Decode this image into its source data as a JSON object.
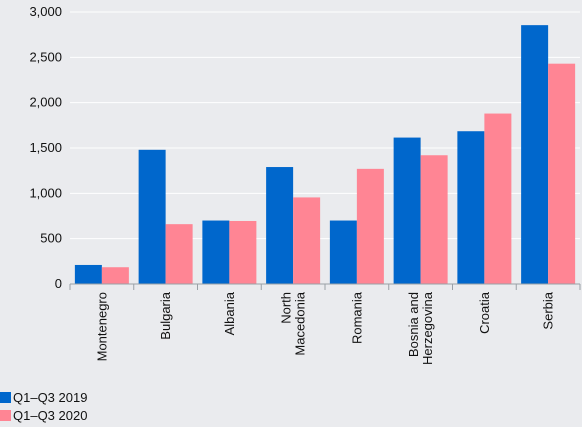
{
  "chart_data": {
    "type": "bar",
    "categories": [
      [
        "Montenegro"
      ],
      [
        "Bulgaria"
      ],
      [
        "Albania"
      ],
      [
        "North",
        "Macedonia"
      ],
      [
        "Romania"
      ],
      [
        "Bosnia and",
        "Herzegovina"
      ],
      [
        "Croatia"
      ],
      [
        "Serbia"
      ]
    ],
    "series": [
      {
        "name": "Q1–Q3 2019",
        "color": "#0067cc",
        "values": [
          210,
          1480,
          700,
          1290,
          700,
          1615,
          1685,
          2855
        ]
      },
      {
        "name": "Q1–Q3 2020",
        "color": "#ff8594",
        "values": [
          185,
          660,
          695,
          955,
          1270,
          1420,
          1880,
          2430
        ]
      }
    ],
    "yticks": [
      "0",
      "500",
      "1,000",
      "1,500",
      "2,000",
      "2,500",
      "3,000"
    ],
    "ylim": [
      0,
      3000
    ],
    "grid": true,
    "legend_position": "bottom-left"
  }
}
